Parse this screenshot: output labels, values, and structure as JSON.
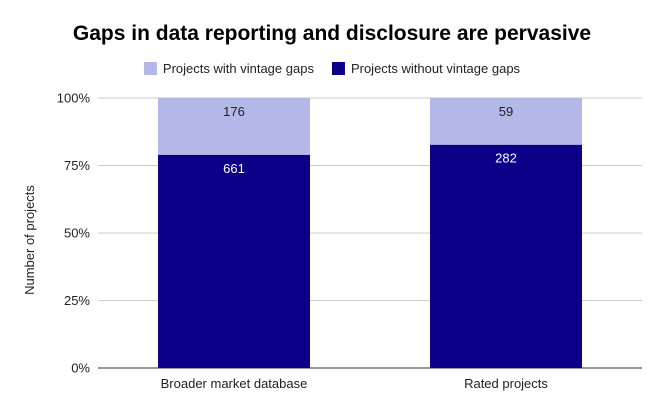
{
  "chart_data": {
    "type": "bar",
    "stacked": true,
    "normalized": true,
    "title": "Gaps in data reporting and disclosure are pervasive",
    "xlabel": "",
    "ylabel": "Number of projects",
    "ylim": [
      0,
      100
    ],
    "y_ticks": [
      "0%",
      "25%",
      "50%",
      "75%",
      "100%"
    ],
    "grid": true,
    "legend_position": "top",
    "categories": [
      "Broader market database",
      "Rated projects"
    ],
    "series": [
      {
        "name": "Projects without vintage gaps",
        "color": "#0b0087",
        "values": [
          661,
          282
        ],
        "label_color": "#ffffff"
      },
      {
        "name": "Projects with vintage gaps",
        "color": "#b3b8e8",
        "values": [
          176,
          59
        ],
        "label_color": "#222222"
      }
    ],
    "legend_order": [
      "Projects with vintage gaps",
      "Projects without vintage gaps"
    ]
  }
}
